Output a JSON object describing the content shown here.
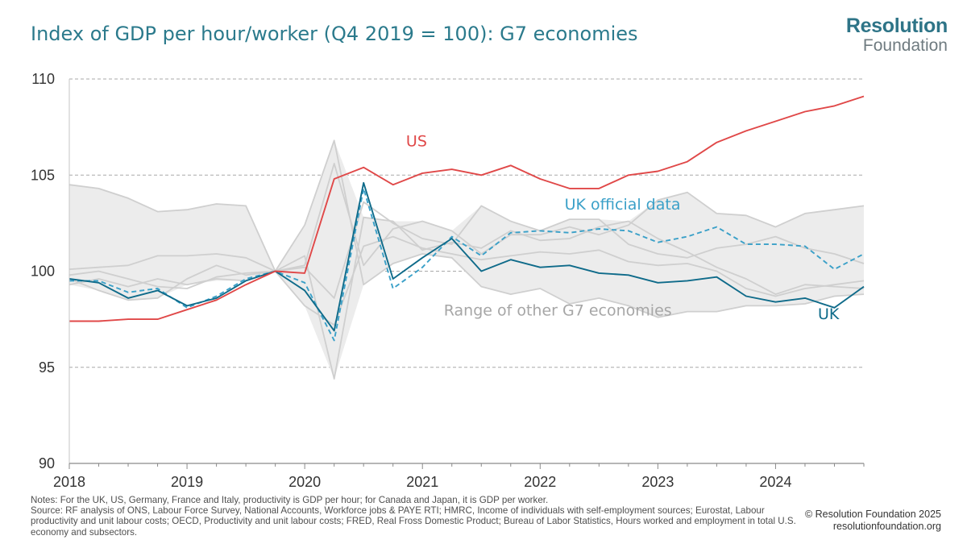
{
  "header": {
    "title": "Index of GDP per hour/worker (Q4 2019 = 100): G7 economies",
    "logo_line1": "Resolution",
    "logo_line2": "Foundation"
  },
  "footer": {
    "notes_line1": "Notes: For the UK, US, Germany, France and Italy, productivity is GDP per hour; for Canada and Japan, it is GDP per worker.",
    "notes_line2": "Source: RF analysis of ONS, Labour Force Survey, National Accounts, Workforce jobs & PAYE RTI; HMRC, Income of individuals with self-employment sources; Eurostat, Labour productivity and unit labour costs; OECD, Productivity and unit labour costs; FRED, Real Fross Domestic Product; Bureau of Labor Statistics, Hours worked and employment in total U.S. economy and subsectors.",
    "copyright": "© Resolution Foundation 2025",
    "website": "resolutionfoundation.org"
  },
  "colors": {
    "us": "#e04848",
    "uk": "#0f6b8a",
    "uk_official": "#3aa0c8",
    "range_fill": "#ececec",
    "other_lines": "#cfcfcf",
    "grid": "#a8a8a8",
    "axis_text": "#333333"
  },
  "chart_data": {
    "type": "line",
    "title": "Index of GDP per hour/worker (Q4 2019 = 100): G7 economies",
    "xlabel": "",
    "ylabel": "",
    "ylim": [
      90,
      110
    ],
    "yticks": [
      90,
      95,
      100,
      105,
      110
    ],
    "xlim": [
      2018,
      2024.75
    ],
    "xticks": [
      2018,
      2019,
      2020,
      2021,
      2022,
      2023,
      2024
    ],
    "grid": true,
    "x": [
      2018,
      2018.25,
      2018.5,
      2018.75,
      2019,
      2019.25,
      2019.5,
      2019.75,
      2020,
      2020.25,
      2020.5,
      2020.75,
      2021,
      2021.25,
      2021.5,
      2021.75,
      2022,
      2022.25,
      2022.5,
      2022.75,
      2023,
      2023.25,
      2023.5,
      2023.75,
      2024,
      2024.25,
      2024.5,
      2024.75
    ],
    "series": [
      {
        "name": "US",
        "style": "solid",
        "values": [
          97.4,
          97.4,
          97.5,
          97.5,
          98.0,
          98.5,
          99.3,
          100.0,
          99.9,
          104.8,
          105.4,
          104.5,
          105.1,
          105.3,
          105.0,
          105.5,
          104.8,
          104.3,
          104.3,
          105.0,
          105.2,
          105.7,
          106.7,
          107.3,
          107.8,
          108.3,
          108.6,
          109.1
        ]
      },
      {
        "name": "UK",
        "style": "solid",
        "values": [
          99.6,
          99.4,
          98.6,
          99.0,
          98.2,
          98.6,
          99.5,
          100.0,
          99.0,
          96.9,
          104.6,
          99.6,
          100.7,
          101.7,
          100.0,
          100.6,
          100.2,
          100.3,
          99.9,
          99.8,
          99.4,
          99.5,
          99.7,
          98.7,
          98.4,
          98.6,
          98.1,
          99.2
        ]
      },
      {
        "name": "UK official data",
        "style": "dashed",
        "values": [
          99.5,
          99.5,
          98.9,
          99.1,
          98.1,
          98.7,
          99.6,
          100.0,
          99.4,
          96.4,
          104.3,
          99.1,
          100.2,
          101.8,
          100.8,
          102.0,
          102.1,
          102.0,
          102.2,
          102.1,
          101.5,
          101.8,
          102.3,
          101.4,
          101.4,
          101.3,
          100.1,
          100.9
        ]
      },
      {
        "name": "Range of other G7 economies",
        "style": "band",
        "lower": [
          99.3,
          99.0,
          98.5,
          98.6,
          99.3,
          99.5,
          99.5,
          100.0,
          98.2,
          94.4,
          99.3,
          100.4,
          100.9,
          100.7,
          99.2,
          98.8,
          99.1,
          98.3,
          98.6,
          98.2,
          97.6,
          97.9,
          97.9,
          98.2,
          98.2,
          98.3,
          98.7,
          98.8
        ],
        "upper": [
          104.5,
          104.3,
          103.8,
          103.1,
          103.2,
          103.5,
          103.4,
          100.0,
          102.4,
          106.8,
          102.8,
          102.6,
          102.6,
          102.1,
          103.4,
          102.6,
          102.1,
          102.7,
          102.7,
          102.6,
          103.7,
          104.1,
          103.0,
          102.9,
          102.3,
          103.0,
          103.2,
          103.4
        ]
      },
      {
        "name": "other-g7-a",
        "style": "thin",
        "values": [
          104.5,
          104.3,
          103.8,
          103.1,
          103.2,
          103.5,
          103.4,
          100.0,
          100.3,
          105.6,
          100.3,
          102.2,
          102.6,
          102.1,
          100.9,
          101.9,
          101.9,
          102.3,
          101.9,
          102.4,
          103.7,
          104.1,
          103.0,
          102.9,
          102.3,
          103.0,
          103.2,
          103.4
        ]
      },
      {
        "name": "other-g7-b",
        "style": "thin",
        "values": [
          100.1,
          100.2,
          100.3,
          100.8,
          100.8,
          100.9,
          100.7,
          100.0,
          100.2,
          98.6,
          103.6,
          102.5,
          101.7,
          101.4,
          103.4,
          102.6,
          102.1,
          102.7,
          102.7,
          101.4,
          100.9,
          100.7,
          101.2,
          101.4,
          101.8,
          101.2,
          100.9,
          100.4
        ]
      },
      {
        "name": "other-g7-c",
        "style": "thin",
        "values": [
          99.3,
          99.6,
          99.2,
          99.6,
          99.3,
          99.6,
          99.5,
          100.0,
          98.2,
          97.2,
          101.3,
          101.8,
          101.2,
          100.9,
          100.6,
          100.8,
          101.0,
          100.9,
          101.1,
          100.5,
          100.3,
          100.4,
          100.0,
          99.1,
          98.7,
          99.1,
          99.3,
          99.5
        ]
      },
      {
        "name": "other-g7-d",
        "style": "thin",
        "values": [
          99.6,
          99.0,
          98.5,
          98.6,
          99.6,
          100.3,
          99.8,
          100.0,
          102.4,
          106.8,
          99.3,
          100.4,
          100.9,
          100.7,
          99.2,
          98.8,
          99.1,
          98.3,
          98.6,
          98.2,
          97.6,
          97.9,
          97.9,
          98.2,
          98.2,
          98.3,
          98.7,
          98.8
        ]
      },
      {
        "name": "other-g7-e",
        "style": "thin",
        "values": [
          99.8,
          100.0,
          99.6,
          99.2,
          99.1,
          99.7,
          99.9,
          100.0,
          100.8,
          94.4,
          102.8,
          102.6,
          101.1,
          101.5,
          101.2,
          102.1,
          101.6,
          101.7,
          102.3,
          102.6,
          101.7,
          101.0,
          100.2,
          99.6,
          98.8,
          99.3,
          99.2,
          99.1
        ]
      }
    ],
    "annotations": [
      {
        "text": "US",
        "series": "US",
        "x": 2020.95,
        "y": 106.5
      },
      {
        "text": "UK official data",
        "series": "UK official data",
        "x": 2022.7,
        "y": 103.2
      },
      {
        "text": "Range of other G7 economies",
        "series": "Range of other G7 economies",
        "x": 2022.15,
        "y": 97.7
      },
      {
        "text": "UK",
        "series": "UK",
        "x": 2024.45,
        "y": 97.5
      }
    ]
  }
}
